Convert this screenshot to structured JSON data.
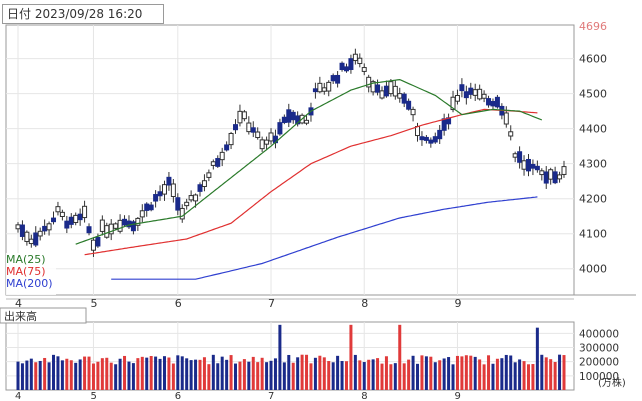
{
  "header": {
    "date_label": "日付 2023/09/28 16:20"
  },
  "chart_data": [
    {
      "type": "candlestick",
      "title": "",
      "y_ticks": [
        4000,
        4100,
        4200,
        4300,
        4400,
        4500,
        4600
      ],
      "y_top_label": "4696",
      "ylim": [
        3925,
        4696
      ],
      "x_month_labels": [
        {
          "label": "4",
          "index": 0
        },
        {
          "label": "5",
          "index": 17
        },
        {
          "label": "6",
          "index": 36
        },
        {
          "label": "7",
          "index": 57
        },
        {
          "label": "8",
          "index": 78
        },
        {
          "label": "9",
          "index": 99
        }
      ],
      "legend": [
        {
          "label": "MA(25)",
          "color": "#2a7a2a"
        },
        {
          "label": "MA(75)",
          "color": "#e03030"
        },
        {
          "label": "MA(200)",
          "color": "#3040d0"
        }
      ],
      "ma_control_points": {
        "ma25": [
          [
            13,
            4070
          ],
          [
            25,
            4125
          ],
          [
            37,
            4150
          ],
          [
            47,
            4250
          ],
          [
            57,
            4350
          ],
          [
            66,
            4450
          ],
          [
            75,
            4510
          ],
          [
            80,
            4530
          ],
          [
            86,
            4540
          ],
          [
            94,
            4495
          ],
          [
            100,
            4440
          ],
          [
            107,
            4455
          ],
          [
            113,
            4450
          ],
          [
            118,
            4425
          ]
        ],
        "ma75": [
          [
            15,
            4040
          ],
          [
            25,
            4060
          ],
          [
            38,
            4085
          ],
          [
            48,
            4130
          ],
          [
            57,
            4220
          ],
          [
            66,
            4300
          ],
          [
            75,
            4350
          ],
          [
            84,
            4380
          ],
          [
            91,
            4410
          ],
          [
            100,
            4440
          ],
          [
            105,
            4455
          ],
          [
            112,
            4450
          ],
          [
            117,
            4445
          ]
        ],
        "ma200": [
          [
            21,
            3970
          ],
          [
            40,
            3970
          ],
          [
            55,
            4015
          ],
          [
            72,
            4090
          ],
          [
            86,
            4145
          ],
          [
            96,
            4170
          ],
          [
            106,
            4190
          ],
          [
            117,
            4205
          ]
        ]
      },
      "candle_anchor_points": [
        [
          0,
          4120
        ],
        [
          3,
          4085
        ],
        [
          6,
          4110
        ],
        [
          9,
          4160
        ],
        [
          12,
          4125
        ],
        [
          15,
          4150
        ],
        [
          17,
          4070
        ],
        [
          19,
          4110
        ],
        [
          23,
          4135
        ],
        [
          26,
          4130
        ],
        [
          31,
          4200
        ],
        [
          34,
          4240
        ],
        [
          37,
          4160
        ],
        [
          39,
          4190
        ],
        [
          42,
          4250
        ],
        [
          45,
          4310
        ],
        [
          48,
          4380
        ],
        [
          50,
          4440
        ],
        [
          53,
          4400
        ],
        [
          55,
          4350
        ],
        [
          59,
          4390
        ],
        [
          61,
          4440
        ],
        [
          63,
          4430
        ],
        [
          65,
          4420
        ],
        [
          67,
          4500
        ],
        [
          70,
          4525
        ],
        [
          74,
          4580
        ],
        [
          77,
          4600
        ],
        [
          79,
          4540
        ],
        [
          81,
          4520
        ],
        [
          83,
          4500
        ],
        [
          85,
          4510
        ],
        [
          88,
          4470
        ],
        [
          90,
          4400
        ],
        [
          93,
          4350
        ],
        [
          96,
          4400
        ],
        [
          98,
          4470
        ],
        [
          100,
          4520
        ],
        [
          102,
          4500
        ],
        [
          104,
          4490
        ],
        [
          106,
          4480
        ],
        [
          108,
          4480
        ],
        [
          110,
          4440
        ],
        [
          112,
          4330
        ],
        [
          114,
          4300
        ],
        [
          116,
          4280
        ],
        [
          118,
          4270
        ]
      ],
      "volume_panel": {
        "title": "出来高",
        "y_ticks": [
          100000,
          200000,
          300000,
          400000
        ],
        "unit_label": "(万株)",
        "y_tick_labels": [
          "100000",
          "200000",
          "300000",
          "400000"
        ],
        "ylim": [
          0,
          480000
        ],
        "baseline": 215000,
        "spikes": [
          {
            "index": 59,
            "value": 460000
          },
          {
            "index": 75,
            "value": 460000
          },
          {
            "index": 86,
            "value": 460000
          },
          {
            "index": 117,
            "value": 440000
          }
        ]
      },
      "colors": {
        "up_body": "#ffffff",
        "up_border": "#333333",
        "down_body": "#1a2a8a",
        "vol_up": "#e03a3a",
        "vol_down": "#1a2a8a",
        "grid": "#e6e6e6",
        "border": "#999999",
        "axis_text": "#333333"
      }
    }
  ]
}
